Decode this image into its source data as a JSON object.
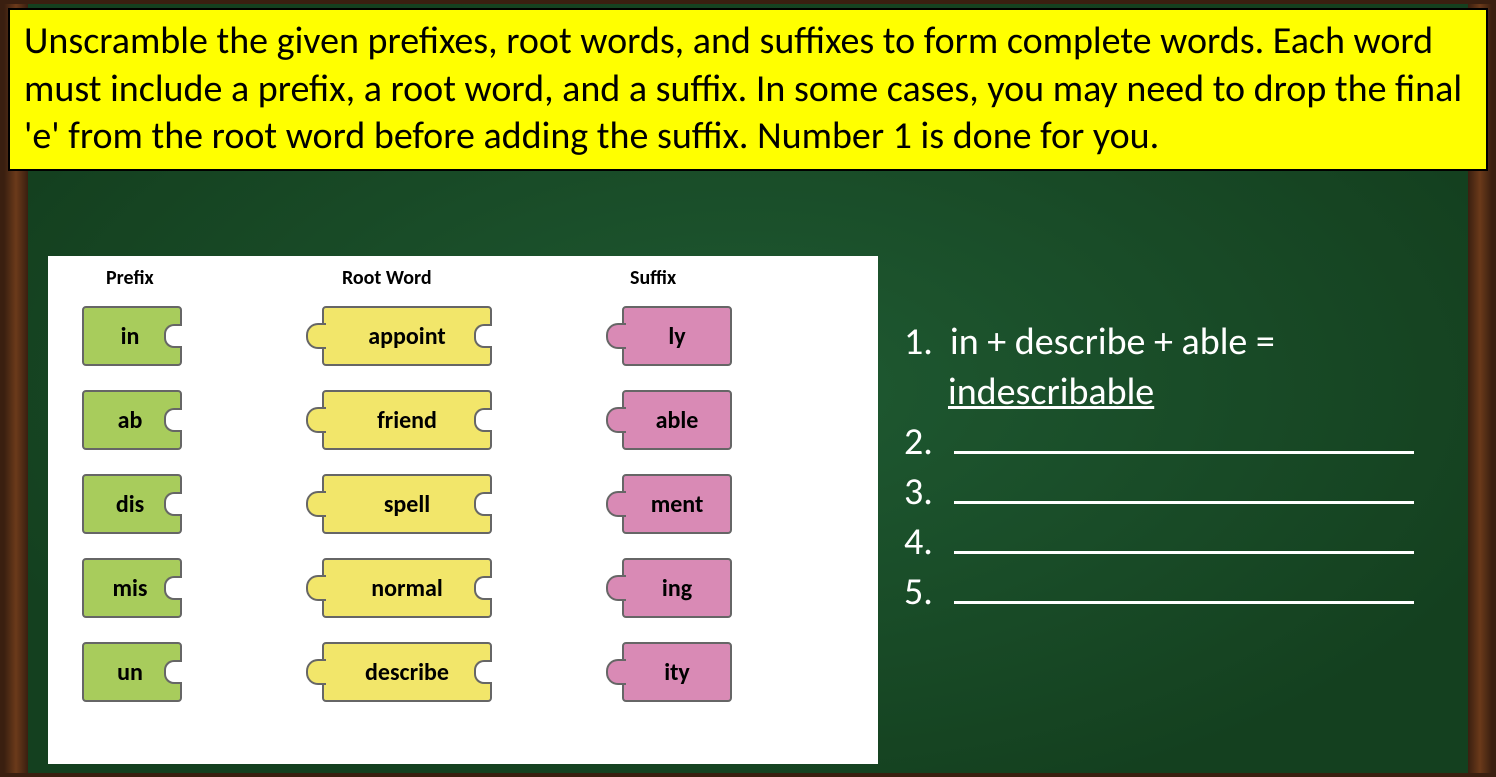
{
  "instructions_text": "Unscramble the given prefixes, root words, and suffixes to form complete words. Each word must include a prefix, a root word, and a suffix. In some cases, you may need to drop the final 'e' from the root word before adding the suffix. Number 1 is done for you.",
  "columns": {
    "prefix_header": "Prefix",
    "root_header": "Root Word",
    "suffix_header": "Suffix"
  },
  "prefixes": [
    "in",
    "ab",
    "dis",
    "mis",
    "un"
  ],
  "roots": [
    "appoint",
    "friend",
    "spell",
    "normal",
    "describe"
  ],
  "suffixes": [
    "ly",
    "able",
    "ment",
    "ing",
    "ity"
  ],
  "answers": {
    "a1": {
      "num": "1.",
      "equation": "in + describe + able =",
      "result": "indescribable"
    },
    "a2": {
      "num": "2."
    },
    "a3": {
      "num": "3."
    },
    "a4": {
      "num": "4."
    },
    "a5": {
      "num": "5."
    }
  },
  "colors": {
    "banner_bg": "#ffff00",
    "prefix_bg": "#a8cc5c",
    "root_bg": "#f2e66a",
    "suffix_bg": "#d98ab5",
    "chalkboard_bg": "#1f5a32",
    "wood_frame": "#6b3a1a",
    "text_light": "#ffffff",
    "text_dark": "#000000"
  }
}
